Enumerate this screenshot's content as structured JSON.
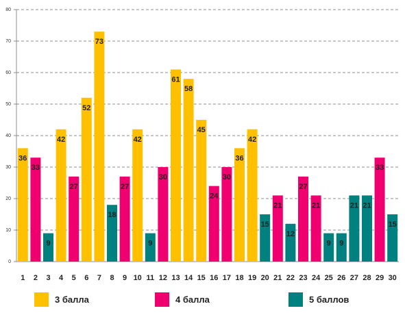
{
  "chart_data": {
    "type": "bar",
    "title": "",
    "xlabel": "",
    "ylabel": "",
    "ylim": [
      0,
      80
    ],
    "yticks": [
      0,
      10,
      20,
      30,
      40,
      50,
      60,
      70,
      80
    ],
    "grid": true,
    "legend_position": "bottom",
    "categories": [
      "1",
      "2",
      "3",
      "4",
      "5",
      "6",
      "7",
      "8",
      "9",
      "10",
      "11",
      "12",
      "13",
      "14",
      "15",
      "16",
      "17",
      "18",
      "19",
      "20",
      "21",
      "22",
      "23",
      "24",
      "25",
      "26",
      "27",
      "28",
      "29",
      "30"
    ],
    "values": [
      36,
      33,
      9,
      42,
      27,
      52,
      73,
      18,
      27,
      42,
      9,
      30,
      61,
      58,
      45,
      24,
      30,
      36,
      42,
      15,
      21,
      12,
      27,
      21,
      9,
      9,
      21,
      21,
      33,
      15
    ],
    "series_index": [
      0,
      1,
      2,
      0,
      1,
      0,
      0,
      2,
      1,
      0,
      2,
      1,
      0,
      0,
      0,
      1,
      1,
      0,
      0,
      2,
      1,
      2,
      1,
      1,
      2,
      2,
      2,
      2,
      1,
      2
    ],
    "series": [
      {
        "name": "3 балла",
        "color": "#FFC000"
      },
      {
        "name": "4 балла",
        "color": "#F0006E"
      },
      {
        "name": "5 баллов",
        "color": "#00807E"
      }
    ]
  }
}
